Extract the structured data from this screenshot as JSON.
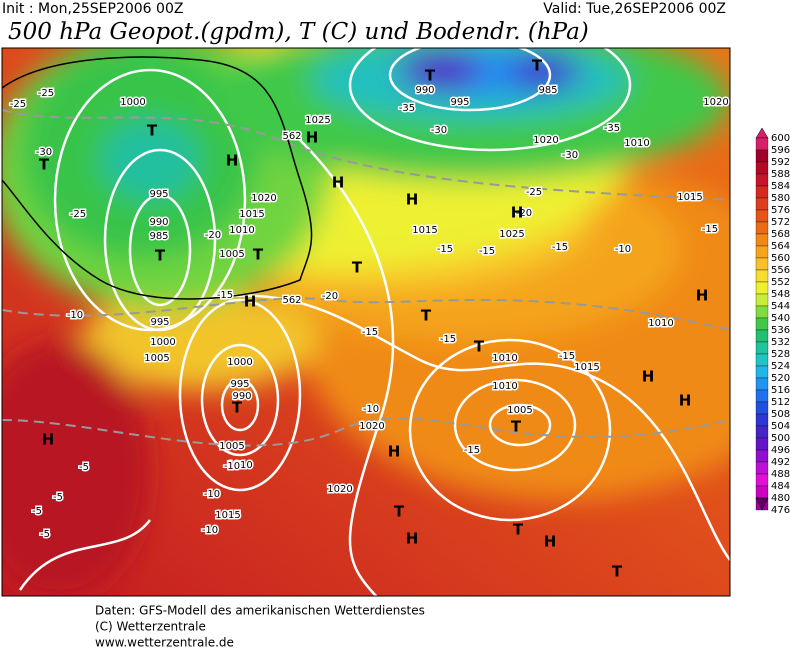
{
  "header": {
    "init": "Init : Mon,25SEP2006 00Z",
    "valid": "Valid: Tue,26SEP2006 00Z",
    "title": "500 hPa Geopot.(gpdm), T (C) und Bodendr. (hPa)"
  },
  "map_labels": [
    "1000",
    "995",
    "990",
    "985",
    "1005",
    "1010",
    "1015",
    "1020",
    "1025",
    "995",
    "990",
    "985",
    "995",
    "1000",
    "1005",
    "1000",
    "995",
    "990",
    "1005",
    "1010",
    "1015",
    "1020",
    "1015",
    "1010",
    "1005",
    "1010",
    "1015",
    "1020",
    "1025",
    "1020",
    "1010",
    "1015",
    "1010",
    "1020",
    "-25",
    "-25",
    "-30",
    "-25",
    "-20",
    "-15",
    "-10",
    "-10",
    "-5",
    "-5",
    "-5",
    "-5",
    "-10",
    "-10",
    "-15",
    "-20",
    "-15",
    "-15",
    "-15",
    "-10",
    "-15",
    "-35",
    "-30",
    "-35",
    "-30",
    "-25",
    "-20",
    "-15",
    "-10",
    "-15",
    "-15",
    "562",
    "562",
    "T",
    "T",
    "T",
    "T",
    "T",
    "T",
    "T",
    "T",
    "T",
    "T",
    "T",
    "T",
    "T",
    "T",
    "H",
    "H",
    "H",
    "H",
    "H",
    "H",
    "H",
    "H",
    "H",
    "H",
    "H",
    "H",
    "H"
  ],
  "colorbar": {
    "labels": [
      600,
      596,
      592,
      588,
      584,
      580,
      576,
      572,
      568,
      564,
      560,
      556,
      552,
      548,
      544,
      540,
      536,
      532,
      528,
      524,
      520,
      516,
      512,
      508,
      504,
      500,
      496,
      492,
      488,
      484,
      480,
      476
    ],
    "colors": [
      "#d8206a",
      "#a0002a",
      "#b40a28",
      "#c8142a",
      "#d42a20",
      "#de3e1e",
      "#e65418",
      "#ec6c16",
      "#f28818",
      "#f6a41c",
      "#f8c02a",
      "#f8dc30",
      "#eef030",
      "#c8ec38",
      "#80dc40",
      "#40c848",
      "#22c070",
      "#20c49c",
      "#20c4c4",
      "#20b4e8",
      "#2094f0",
      "#2070f0",
      "#2050e0",
      "#3034d0",
      "#4424c4",
      "#6414c8",
      "#9010d0",
      "#bc10d4",
      "#e010d4",
      "#cc00c0",
      "#a000a0",
      "#600060"
    ]
  },
  "footer": [
    "Daten: GFS-Modell des amerikanischen Wetterdienstes",
    "(C) Wetterzentrale",
    "www.wetterzentrale.de"
  ]
}
